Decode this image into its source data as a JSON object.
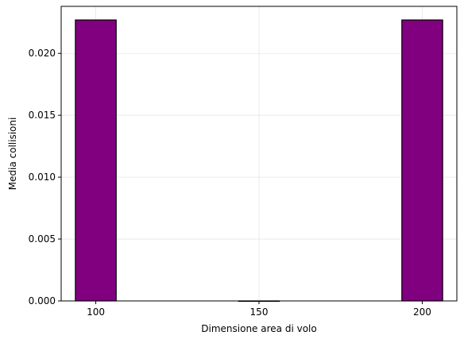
{
  "chart_data": {
    "type": "bar",
    "title": "",
    "xlabel": "Dimensione area di volo",
    "ylabel": "Media collisioni",
    "categories": [
      100,
      150,
      200
    ],
    "x_tick_labels": [
      "100",
      "150",
      "200"
    ],
    "values": [
      0.0227,
      0.0,
      0.0227
    ],
    "bar_width": 12.5,
    "xlim": [
      89.4,
      210.6
    ],
    "ylim": [
      0,
      0.0238
    ],
    "y_ticks": [
      0.0,
      0.005,
      0.01,
      0.015,
      0.02
    ],
    "y_tick_labels": [
      "0.000",
      "0.005",
      "0.010",
      "0.015",
      "0.020"
    ],
    "grid": true,
    "legend": "none",
    "colors": {
      "bar_fill": "#800080",
      "bar_edge": "#000000",
      "grid": "#e6e6e6",
      "axis": "#000000"
    }
  }
}
